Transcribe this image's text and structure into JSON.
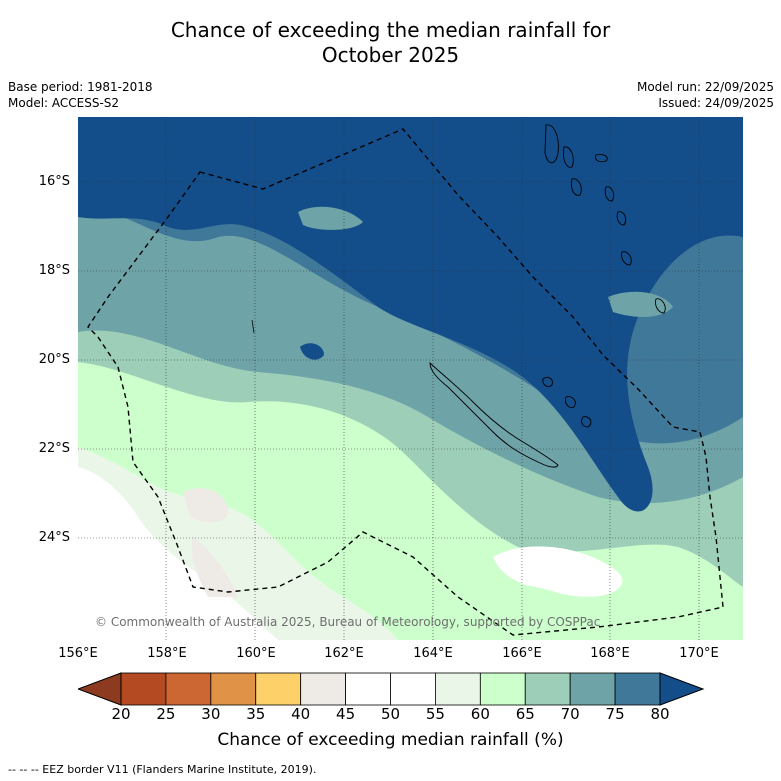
{
  "title": {
    "line1": "Chance of exceeding the median rainfall for",
    "line2": "October 2025"
  },
  "meta": {
    "base_period": "Base period: 1981-2018",
    "model": "Model: ACCESS-S2",
    "model_run": "Model run: 22/09/2025",
    "issued": "Issued: 24/09/2025"
  },
  "axes": {
    "latitudes": [
      "16°S",
      "18°S",
      "20°S",
      "22°S",
      "24°S"
    ],
    "longitudes": [
      "156°E",
      "158°E",
      "160°E",
      "162°E",
      "164°E",
      "166°E",
      "168°E",
      "170°E"
    ]
  },
  "copyright": "© Commonwealth of Australia 2025, Bureau of Meteorology, supported by COSPPac",
  "colorbar": {
    "ticks": [
      "20",
      "25",
      "30",
      "35",
      "40",
      "45",
      "50",
      "55",
      "60",
      "65",
      "70",
      "75",
      "80"
    ],
    "colors": [
      "#b34a22",
      "#cc6633",
      "#e09347",
      "#fdd069",
      "#eeebe6",
      "#ffffff",
      "#ffffff",
      "#eaf7e8",
      "#ccffcc",
      "#9dcfb8",
      "#6ea3a8",
      "#407899"
    ],
    "under_color": "#8c3b20",
    "over_color": "#134d8a",
    "label": "Chance of exceeding median rainfall (%)"
  },
  "legend_note": "--  --  -- EEZ border V11 (Flanders Marine Institute, 2019)."
}
